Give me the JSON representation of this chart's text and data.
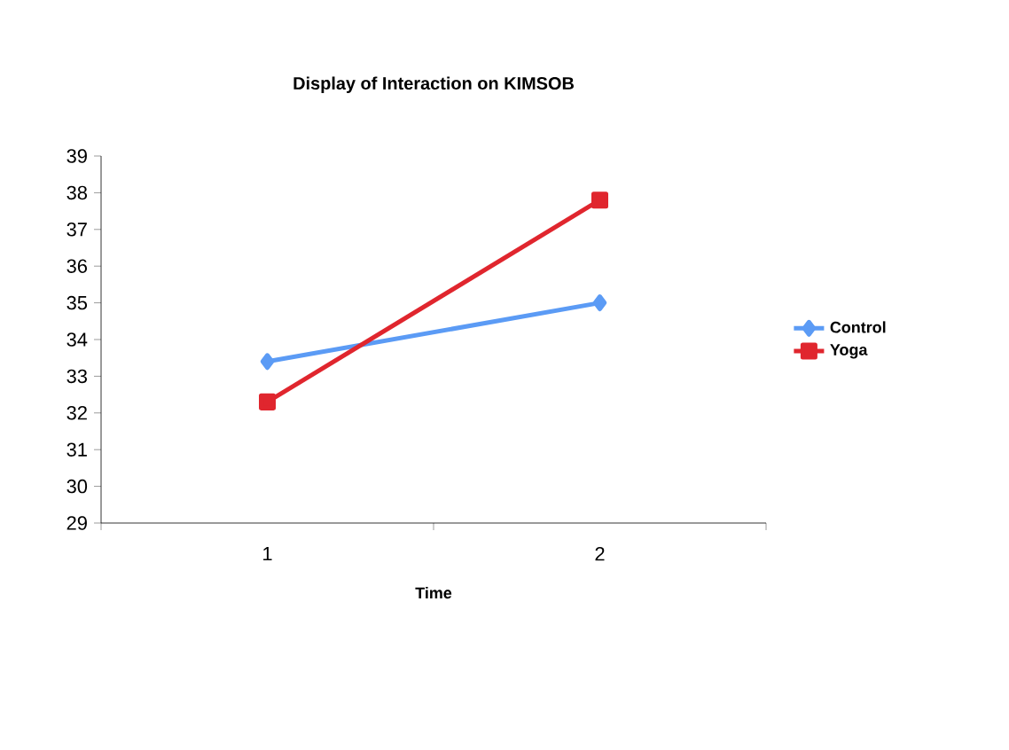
{
  "chart_data": {
    "type": "line",
    "title": "Display of Interaction on KIMSOB",
    "xlabel": "Time",
    "categories": [
      "1",
      "2"
    ],
    "series": [
      {
        "name": "Control",
        "color": "#5b9bf5",
        "values": [
          33.4,
          35.0
        ],
        "marker": "diamond"
      },
      {
        "name": "Yoga",
        "color": "#e0262e",
        "values": [
          32.3,
          37.8
        ],
        "marker": "square"
      }
    ],
    "ylim": [
      29,
      39
    ],
    "yticks": [
      29,
      30,
      31,
      32,
      33,
      34,
      35,
      36,
      37,
      38,
      39
    ],
    "grid": false,
    "legend": "right"
  }
}
